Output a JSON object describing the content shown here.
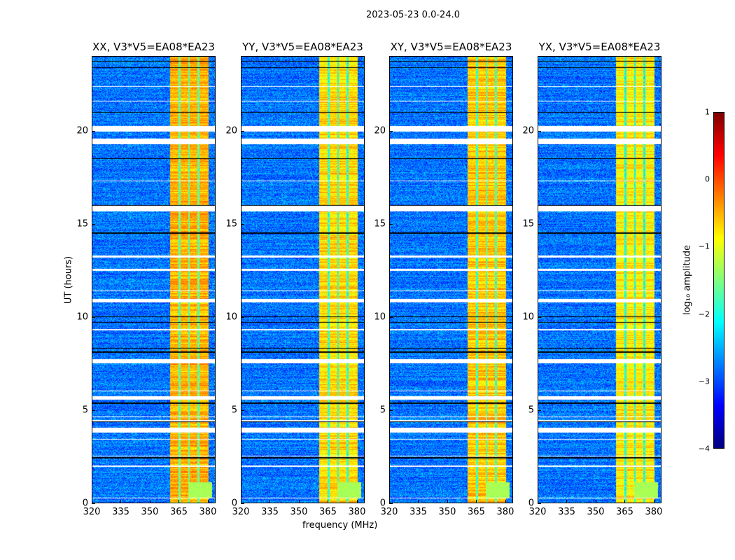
{
  "title": "2023-05-23 0.0-24.0",
  "chart_data": {
    "type": "heatmap",
    "title": "2023-05-23 0.0-24.0",
    "xlabel": "frequency (MHz)",
    "ylabel": "UT (hours)",
    "xlim": [
      320,
      384
    ],
    "ylim": [
      0,
      24
    ],
    "xticks": [
      "320",
      "335",
      "350",
      "365",
      "380"
    ],
    "xtick_values": [
      320,
      335,
      350,
      365,
      380
    ],
    "yticks": [
      "0",
      "5",
      "10",
      "15",
      "20"
    ],
    "ytick_values": [
      0,
      5,
      10,
      15,
      20
    ],
    "panels": [
      {
        "title": "XX, V3*V5=EA08*EA23",
        "band_level": -0.5
      },
      {
        "title": "YY, V3*V5=EA08*EA23",
        "band_level": -0.7
      },
      {
        "title": "XY, V3*V5=EA08*EA23",
        "band_level": -0.6
      },
      {
        "title": "YX, V3*V5=EA08*EA23",
        "band_level": -0.8
      }
    ],
    "background_level": -2.8,
    "rfi_band_mhz": [
      360.5,
      380.5
    ],
    "rfi_gaps_mhz": [
      365.3,
      370.3,
      375.3
    ],
    "low_band_extension_mhz": [
      370,
      382.5
    ],
    "low_band_extension_hours": [
      0.25,
      1.1
    ],
    "flagged_hours": [
      [
        20.0,
        20.3
      ],
      [
        19.3,
        19.6
      ],
      [
        15.7,
        16.0
      ],
      [
        10.8,
        11.0
      ],
      [
        7.5,
        7.75
      ],
      [
        5.55,
        5.75
      ],
      [
        3.8,
        4.05
      ],
      [
        22.4,
        22.45
      ],
      [
        21.6,
        21.65
      ],
      [
        17.3,
        17.35
      ],
      [
        13.2,
        13.3
      ],
      [
        12.5,
        12.6
      ],
      [
        11.4,
        11.45
      ],
      [
        9.3,
        9.35
      ],
      [
        6.0,
        6.05
      ],
      [
        4.6,
        4.65
      ],
      [
        4.4,
        4.45
      ],
      [
        3.4,
        3.45
      ],
      [
        2.5,
        2.55
      ],
      [
        1.95,
        2.0
      ],
      [
        0.25,
        0.3
      ]
    ],
    "black_hours": [
      [
        23.75,
        23.8
      ],
      [
        23.4,
        23.45
      ],
      [
        21.0,
        21.05
      ],
      [
        18.5,
        18.55
      ],
      [
        16.0,
        16.05
      ],
      [
        14.5,
        14.55
      ],
      [
        10.0,
        10.05
      ],
      [
        9.7,
        9.75
      ],
      [
        8.3,
        8.35
      ],
      [
        8.1,
        8.15
      ],
      [
        5.35,
        5.4
      ],
      [
        4.35,
        4.4
      ],
      [
        2.4,
        2.45
      ]
    ],
    "colorbar": {
      "label": "log₁₀ amplitude",
      "range": [
        -4,
        1
      ],
      "ticks": [
        "1",
        "0",
        "−1",
        "−2",
        "−3",
        "−4"
      ],
      "tick_values": [
        1,
        0,
        -1,
        -2,
        -3,
        -4
      ]
    }
  }
}
